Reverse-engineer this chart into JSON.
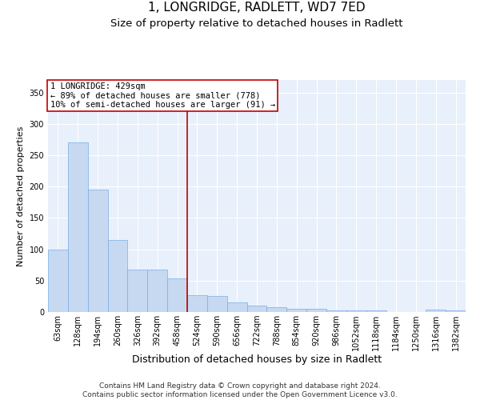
{
  "title": "1, LONGRIDGE, RADLETT, WD7 7ED",
  "subtitle": "Size of property relative to detached houses in Radlett",
  "xlabel": "Distribution of detached houses by size in Radlett",
  "ylabel": "Number of detached properties",
  "bar_labels": [
    "63sqm",
    "128sqm",
    "194sqm",
    "260sqm",
    "326sqm",
    "392sqm",
    "458sqm",
    "524sqm",
    "590sqm",
    "656sqm",
    "722sqm",
    "788sqm",
    "854sqm",
    "920sqm",
    "986sqm",
    "1052sqm",
    "1118sqm",
    "1184sqm",
    "1250sqm",
    "1316sqm",
    "1382sqm"
  ],
  "bar_values": [
    100,
    270,
    195,
    115,
    68,
    67,
    54,
    27,
    26,
    15,
    10,
    8,
    5,
    5,
    3,
    2,
    3,
    0,
    0,
    4,
    3
  ],
  "bar_color": "#c6d9f1",
  "bar_edgecolor": "#7aace4",
  "vline_x": 6.5,
  "vline_color": "#c00000",
  "annotation_text": "1 LONGRIDGE: 429sqm\n← 89% of detached houses are smaller (778)\n10% of semi-detached houses are larger (91) →",
  "annotation_box_color": "#c00000",
  "ylim": [
    0,
    370
  ],
  "yticks": [
    0,
    50,
    100,
    150,
    200,
    250,
    300,
    350
  ],
  "bg_color": "#e8f0fb",
  "grid_color": "#ffffff",
  "footer": "Contains HM Land Registry data © Crown copyright and database right 2024.\nContains public sector information licensed under the Open Government Licence v3.0.",
  "title_fontsize": 11,
  "subtitle_fontsize": 9.5,
  "xlabel_fontsize": 9,
  "ylabel_fontsize": 8,
  "tick_fontsize": 7,
  "footer_fontsize": 6.5,
  "annotation_fontsize": 7.5
}
